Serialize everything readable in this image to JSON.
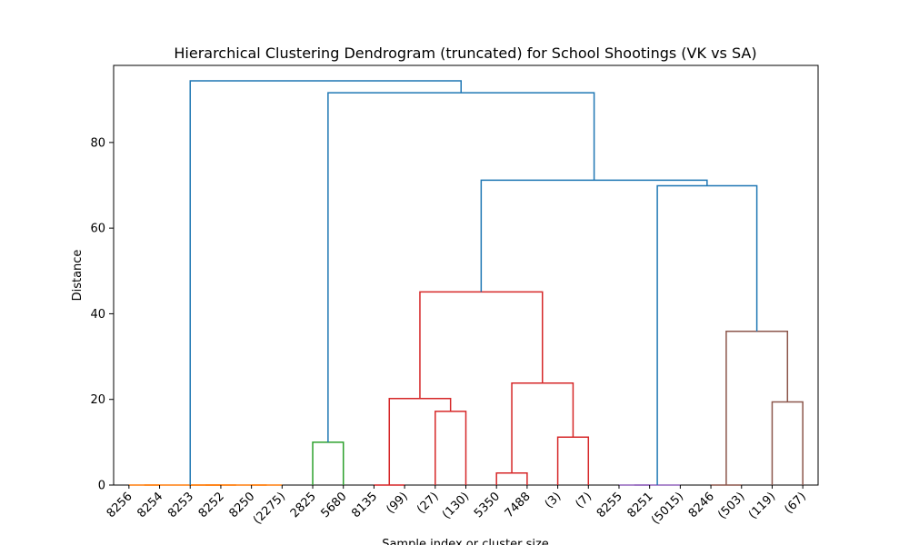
{
  "chart_data": {
    "type": "dendrogram",
    "title": "Hierarchical Clustering Dendrogram (truncated) for School Shootings (VK vs SA)",
    "xlabel": "Sample index or cluster size",
    "ylabel": "Distance",
    "ylim": [
      0,
      98
    ],
    "yticks": [
      0,
      20,
      40,
      60,
      80
    ],
    "grid": false,
    "leaves": [
      "8256",
      "8254",
      "8253",
      "8252",
      "8250",
      "(2275)",
      "2825",
      "5680",
      "8135",
      "(99)",
      "(27)",
      "(130)",
      "5350",
      "7488",
      "(3)",
      "(7)",
      "8255",
      "8251",
      "(5015)",
      "8246",
      "(503)",
      "(119)",
      "(67)"
    ],
    "colors": {
      "blue": "#1f77b4",
      "orange": "#ff7f0e",
      "green": "#2ca02c",
      "red": "#d62728",
      "purple": "#9467bd",
      "brown": "#8c564b"
    },
    "merges": [
      {
        "id": "o1",
        "left": 0,
        "right": 1,
        "height": 0,
        "color": "orange"
      },
      {
        "id": "o2",
        "left": 2,
        "right": 3,
        "height": 0,
        "color": "orange"
      },
      {
        "id": "o3",
        "left": 4,
        "right": 5,
        "height": 0,
        "color": "orange"
      },
      {
        "id": "o4",
        "left": "o2",
        "right": "o3",
        "height": 0,
        "color": "orange"
      },
      {
        "id": "o5",
        "left": "o1",
        "right": "o4",
        "height": 0,
        "color": "orange"
      },
      {
        "id": "g1",
        "left": 6,
        "right": 7,
        "height": 10,
        "color": "green"
      },
      {
        "id": "r1",
        "left": 8,
        "right": 9,
        "height": 0,
        "color": "red"
      },
      {
        "id": "r2",
        "left": 10,
        "right": 11,
        "height": 17.2,
        "color": "red"
      },
      {
        "id": "r3",
        "left": "r1",
        "right": "r2",
        "height": 20.2,
        "color": "red"
      },
      {
        "id": "r4",
        "left": 12,
        "right": 13,
        "height": 2.8,
        "color": "red"
      },
      {
        "id": "r5",
        "left": 14,
        "right": 15,
        "height": 11.2,
        "color": "red"
      },
      {
        "id": "r6",
        "left": "r4",
        "right": "r5",
        "height": 23.8,
        "color": "red"
      },
      {
        "id": "r7",
        "left": "r3",
        "right": "r6",
        "height": 45.1,
        "color": "red"
      },
      {
        "id": "p1",
        "left": 16,
        "right": 17,
        "height": 0,
        "color": "purple"
      },
      {
        "id": "p2",
        "left": "p1",
        "right": 18,
        "height": 0,
        "color": "purple"
      },
      {
        "id": "n1",
        "left": 19,
        "right": 20,
        "height": 0,
        "color": "brown"
      },
      {
        "id": "n2",
        "left": 21,
        "right": 22,
        "height": 19.4,
        "color": "brown"
      },
      {
        "id": "n3",
        "left": "n1",
        "right": "n2",
        "height": 35.9,
        "color": "brown"
      },
      {
        "id": "b1",
        "left": "p2",
        "right": "n3",
        "height": 69.9,
        "color": "blue"
      },
      {
        "id": "b2",
        "left": "r7",
        "right": "b1",
        "height": 71.2,
        "color": "blue"
      },
      {
        "id": "b3",
        "left": "g1",
        "right": "b2",
        "height": 91.6,
        "color": "blue"
      },
      {
        "id": "b4",
        "left": "o5",
        "right": "b3",
        "height": 94.4,
        "color": "blue"
      }
    ]
  }
}
